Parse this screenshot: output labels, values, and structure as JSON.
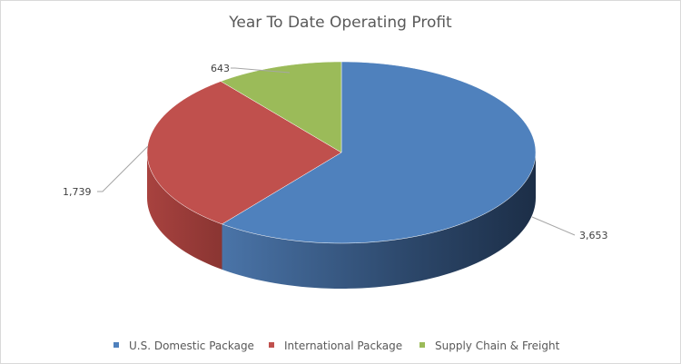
{
  "chart_data": {
    "type": "pie",
    "title": "Year To Date Operating Profit",
    "categories": [
      "U.S. Domestic Package",
      "International Package",
      "Supply Chain & Freight"
    ],
    "values": [
      3653,
      1739,
      643
    ],
    "data_labels": [
      "3,653",
      "1,739",
      "643"
    ],
    "colors": [
      "#4f81bd",
      "#c0504d",
      "#9bbb59"
    ],
    "side_colors": [
      "#2f4d73",
      "#8f3a37",
      "#6f8a3f"
    ],
    "style": "3d",
    "legend": "bottom"
  }
}
